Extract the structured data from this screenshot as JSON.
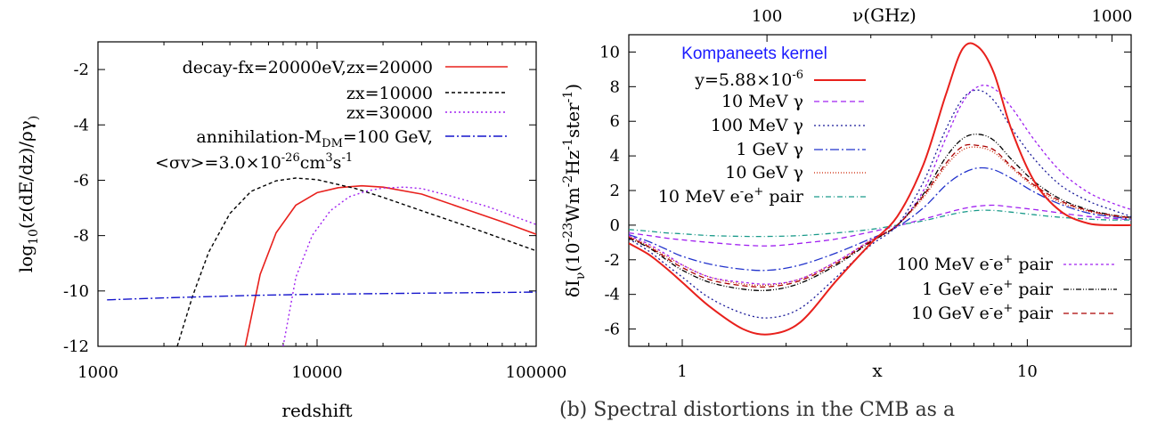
{
  "chart_data": [
    {
      "type": "line",
      "xlabel": "redshift",
      "ylabel": "log10(z(dE/dz)/ργ)",
      "x_scale": "log",
      "xlim": [
        1000,
        100000
      ],
      "ylim": [
        -12,
        -1
      ],
      "x_ticks": [
        {
          "value": 1000,
          "label": "1000"
        },
        {
          "value": 10000,
          "label": "10000"
        },
        {
          "value": 100000,
          "label": "100000"
        }
      ],
      "y_ticks": [
        {
          "value": -2,
          "label": "-2"
        },
        {
          "value": -4,
          "label": "-4"
        },
        {
          "value": -6,
          "label": "-6"
        },
        {
          "value": -8,
          "label": "-8"
        },
        {
          "value": -10,
          "label": "-10"
        },
        {
          "value": -12,
          "label": "-12"
        }
      ],
      "legend_position": "top-right",
      "series": [
        {
          "name": "decay-fx=20000eV,zx=20000",
          "color": "#e8201c",
          "dash": "solid",
          "x": [
            4700,
            5500,
            6500,
            8000,
            10000,
            12500,
            16000,
            20000,
            30000,
            50000,
            70000,
            100000
          ],
          "y": [
            -12,
            -9.4,
            -7.9,
            -6.9,
            -6.45,
            -6.27,
            -6.2,
            -6.25,
            -6.5,
            -7.1,
            -7.5,
            -7.95
          ]
        },
        {
          "name": "zx=10000",
          "color": "#000000",
          "dash": "4,3",
          "x": [
            2300,
            2700,
            3200,
            4000,
            5000,
            6500,
            8000,
            10000,
            15000,
            20000,
            30000,
            50000,
            100000
          ],
          "y": [
            -12,
            -10.2,
            -8.6,
            -7.2,
            -6.4,
            -6.02,
            -5.92,
            -5.98,
            -6.3,
            -6.62,
            -7.1,
            -7.7,
            -8.55
          ]
        },
        {
          "name": "zx=30000",
          "color": "#a020f0",
          "dash": "2,3",
          "x": [
            7000,
            8000,
            9500,
            11500,
            14000,
            17000,
            20000,
            25000,
            30000,
            40000,
            60000,
            100000
          ],
          "y": [
            -12,
            -9.5,
            -8.0,
            -7.1,
            -6.6,
            -6.38,
            -6.28,
            -6.25,
            -6.3,
            -6.55,
            -6.95,
            -7.6
          ]
        },
        {
          "name": "annihilation-MDM=100 GeV,",
          "name_line2": "<σv>=3.0×10-26cm3s-1",
          "color": "#1515cc",
          "dash": "10,3,2,3",
          "x": [
            1100,
            2000,
            5000,
            10000,
            30000,
            100000
          ],
          "y": [
            -10.32,
            -10.25,
            -10.16,
            -10.12,
            -10.08,
            -10.04
          ]
        }
      ],
      "legend_labels": {
        "decay": "decay-fx=20000eV,zx=20000",
        "zx10": "zx=10000",
        "zx30": "zx=30000",
        "ann_l1_a": "annihilation-M",
        "ann_l1_sub": "DM",
        "ann_l1_b": "=100 GeV,",
        "ann_l2_a": "<σv>=3.0×10",
        "ann_l2_sup1": "-26",
        "ann_l2_b": "cm",
        "ann_l2_sup2": "3",
        "ann_l2_c": "s",
        "ann_l2_sup3": "-1"
      }
    },
    {
      "type": "line",
      "xlabel": "x",
      "ylabel": "δIν(10-23Wm-2Hz-1ster-1)",
      "top_xlabel": "ν(GHz)",
      "x_scale": "log",
      "xlim": [
        0.7,
        20
      ],
      "ylim": [
        -7,
        11
      ],
      "x_ticks": [
        {
          "value": 1,
          "label": "1"
        },
        {
          "value": 10,
          "label": "10"
        }
      ],
      "top_x_ticks": [
        {
          "value": 1.76,
          "label": "100"
        },
        {
          "value": 17.6,
          "label": "1000"
        }
      ],
      "y_ticks": [
        {
          "value": -6,
          "label": "-6"
        },
        {
          "value": -4,
          "label": "-4"
        },
        {
          "value": -2,
          "label": "-2"
        },
        {
          "value": 0,
          "label": "0"
        },
        {
          "value": 2,
          "label": "2"
        },
        {
          "value": 4,
          "label": "4"
        },
        {
          "value": 6,
          "label": "6"
        },
        {
          "value": 8,
          "label": "8"
        },
        {
          "value": 10,
          "label": "10"
        }
      ],
      "legend_title": "Kompaneets kernel",
      "legend_title_color": "#1a1aff",
      "legend_position": "top-left",
      "x_grid": [
        0.7,
        0.8,
        0.9,
        1.0,
        1.2,
        1.5,
        1.8,
        2.2,
        2.8,
        3.5,
        4.2,
        5.0,
        5.8,
        6.5,
        7.2,
        8.0,
        9.0,
        10.5,
        12.5,
        15.0,
        17.5,
        20.0
      ],
      "series": [
        {
          "name": "y=5.88×10-6",
          "color": "#e8201c",
          "dash": "solid",
          "width": 2,
          "y": [
            -1.05,
            -1.7,
            -2.5,
            -3.3,
            -4.7,
            -6.0,
            -6.3,
            -5.6,
            -3.2,
            -1.1,
            0.5,
            3.5,
            7.5,
            10.2,
            10.3,
            8.8,
            5.5,
            2.5,
            0.8,
            0.1,
            0.0,
            0.0
          ]
        },
        {
          "name": "10 MeV γ",
          "color": "#a020f0",
          "dash": "6,4",
          "y": [
            -0.45,
            -0.6,
            -0.75,
            -0.85,
            -1.0,
            -1.15,
            -1.2,
            -1.05,
            -0.8,
            -0.4,
            -0.05,
            0.35,
            0.7,
            0.95,
            1.1,
            1.15,
            1.05,
            0.9,
            0.7,
            0.5,
            0.4,
            0.3
          ]
        },
        {
          "name": "100 MeV γ",
          "color": "#1a1a99",
          "dash": "2,3",
          "y": [
            -0.8,
            -1.5,
            -2.3,
            -3.0,
            -4.2,
            -5.1,
            -5.35,
            -4.8,
            -3.0,
            -1.2,
            0.0,
            2.5,
            5.5,
            7.3,
            7.8,
            7.2,
            5.6,
            3.8,
            2.3,
            1.4,
            0.9,
            0.5
          ]
        },
        {
          "name": "1 GeV γ",
          "color": "#2233cc",
          "dash": "10,3,2,3",
          "y": [
            -0.55,
            -0.95,
            -1.4,
            -1.8,
            -2.25,
            -2.55,
            -2.6,
            -2.3,
            -1.6,
            -0.8,
            -0.1,
            1.0,
            2.3,
            3.0,
            3.3,
            3.2,
            2.7,
            1.9,
            1.2,
            0.7,
            0.5,
            0.35
          ]
        },
        {
          "name": "10 GeV γ",
          "color": "#cc2200",
          "dash": "1,2",
          "y": [
            -0.65,
            -1.2,
            -1.8,
            -2.3,
            -3.0,
            -3.4,
            -3.45,
            -3.1,
            -2.1,
            -0.9,
            0.0,
            1.6,
            3.4,
            4.35,
            4.5,
            4.2,
            3.3,
            2.2,
            1.3,
            0.8,
            0.55,
            0.4
          ]
        },
        {
          "name": "10 MeV e-e+ pair",
          "color": "#1a9a8a",
          "dash": "6,3,1,3",
          "y": [
            -0.25,
            -0.35,
            -0.45,
            -0.5,
            -0.6,
            -0.65,
            -0.65,
            -0.6,
            -0.45,
            -0.25,
            0.0,
            0.25,
            0.55,
            0.75,
            0.85,
            0.85,
            0.75,
            0.6,
            0.45,
            0.35,
            0.3,
            0.3
          ]
        },
        {
          "name": "100 MeV e-e+ pair",
          "color": "#a020f0",
          "dash": "3,3",
          "y": [
            -0.6,
            -1.1,
            -1.7,
            -2.3,
            -3.0,
            -3.3,
            -3.4,
            -3.1,
            -2.1,
            -0.9,
            0.0,
            2.0,
            5.0,
            7.1,
            8.0,
            7.9,
            6.8,
            4.9,
            3.1,
            1.9,
            1.3,
            0.9
          ]
        },
        {
          "name": "1 GeV e-e+ pair",
          "color": "#000000",
          "dash": "6,2,1,2,1,2",
          "y": [
            -0.75,
            -1.3,
            -2.0,
            -2.6,
            -3.3,
            -3.7,
            -3.75,
            -3.35,
            -2.3,
            -1.0,
            0.0,
            1.8,
            3.9,
            5.0,
            5.25,
            4.9,
            3.8,
            2.5,
            1.5,
            0.9,
            0.6,
            0.45
          ]
        },
        {
          "name": "10 GeV e-e+ pair",
          "color": "#aa0000",
          "dash": "6,4",
          "y": [
            -0.7,
            -1.25,
            -1.9,
            -2.45,
            -3.15,
            -3.5,
            -3.55,
            -3.2,
            -2.2,
            -0.95,
            0.0,
            1.7,
            3.55,
            4.55,
            4.6,
            4.35,
            3.4,
            2.3,
            1.4,
            0.85,
            0.58,
            0.42
          ]
        }
      ],
      "legend_labels": {
        "red_a": "y=5.88×10",
        "red_sup": "-6",
        "g10": "10 MeV γ",
        "g100": "100 MeV γ",
        "g1": "1 GeV γ",
        "g10g": "10 GeV γ",
        "p10_a": "10 MeV e",
        "p10_s1": "-",
        "p10_b": "e",
        "p10_s2": "+",
        "p10_c": " pair",
        "p100_a": "100 MeV e",
        "p100_s1": "-",
        "p100_b": "e",
        "p100_s2": "+",
        "p100_c": " pair",
        "p1_a": "1 GeV e",
        "p1_s1": "-",
        "p1_b": "e",
        "p1_s2": "+",
        "p1_c": " pair",
        "p10g_a": "10 GeV e",
        "p10g_s1": "-",
        "p10g_b": "e",
        "p10g_s2": "+",
        "p10g_c": " pair"
      },
      "ylabel_parts": {
        "a": "δI",
        "sub": "ν",
        "b": "(10",
        "sup1": "-23",
        "c": "Wm",
        "sup2": "-2",
        "d": "Hz",
        "sup3": "-1",
        "e": "ster",
        "sup4": "-1",
        "f": ")"
      }
    }
  ],
  "caption": "(b) Spectral distortions in the CMB as a"
}
